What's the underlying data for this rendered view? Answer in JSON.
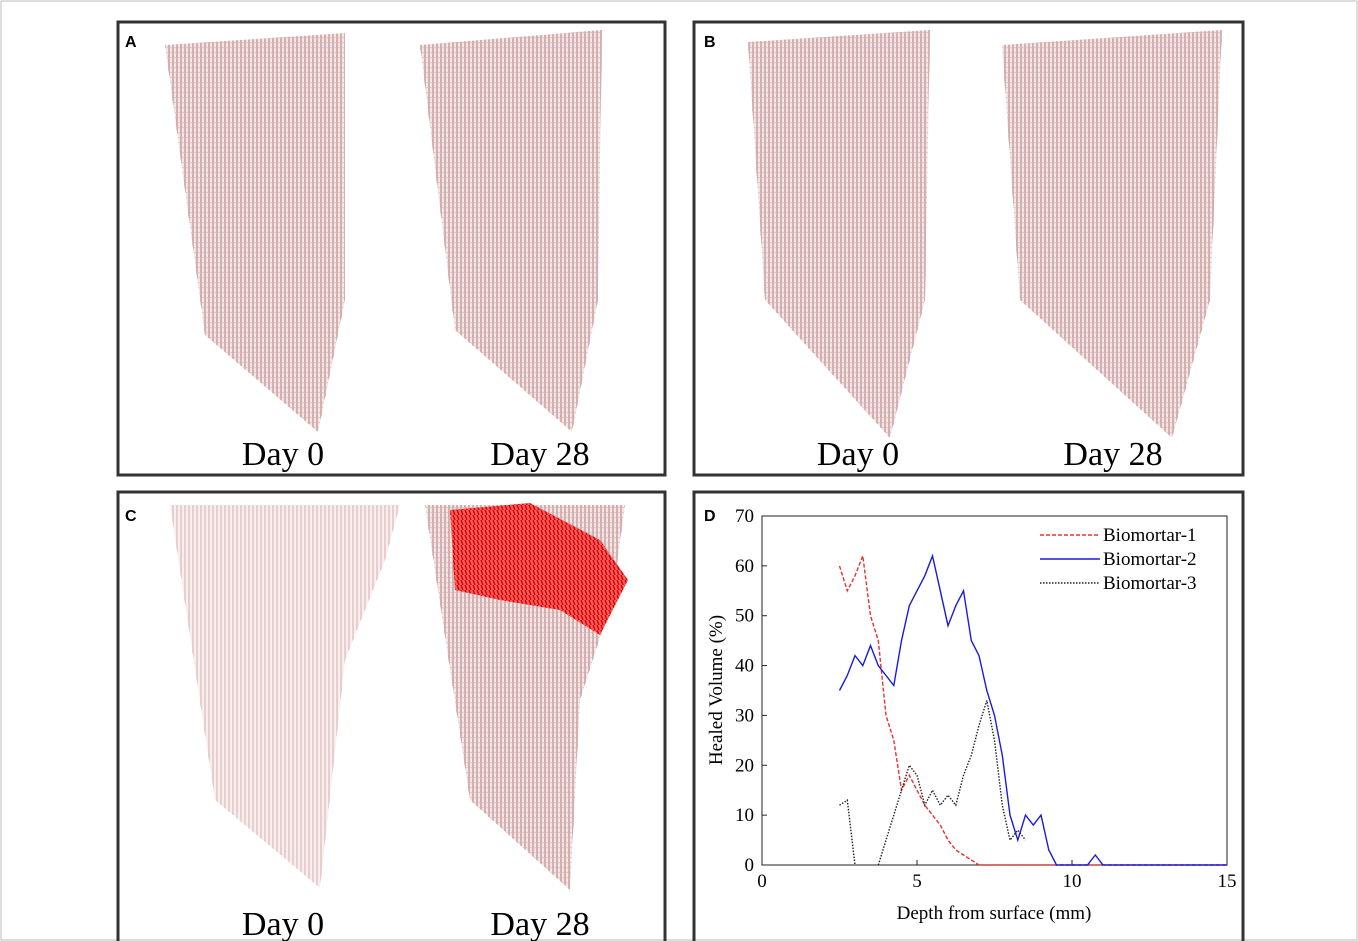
{
  "panels": [
    {
      "label": "A",
      "captions": [
        "Day 0",
        "Day 28"
      ]
    },
    {
      "label": "B",
      "captions": [
        "Day 0",
        "Day 28"
      ]
    },
    {
      "label": "C",
      "captions": [
        "Day 0",
        "Day 28"
      ]
    },
    {
      "label": "D"
    }
  ],
  "chart_data": {
    "type": "line",
    "x_label": "Depth from surface (mm)",
    "y_label": "Healed Volume (%)",
    "x": [
      2.5,
      2.75,
      3,
      3.25,
      3.5,
      3.75,
      4,
      4.25,
      4.5,
      4.75,
      5,
      5.25,
      5.5,
      5.75,
      6,
      6.25,
      6.5,
      6.75,
      7,
      7.25,
      7.5,
      7.75,
      8,
      8.25,
      8.5,
      8.75,
      9,
      9.25,
      9.5,
      9.75,
      10,
      10.25,
      10.5,
      10.75,
      11,
      11.25,
      11.5,
      11.75,
      12,
      12.25,
      12.5,
      12.75,
      13,
      13.25,
      13.5,
      13.75,
      14,
      14.25,
      14.5,
      14.75,
      15
    ],
    "series": [
      {
        "name": "Biomortar-1",
        "color": "#e8322e",
        "style": "dashed",
        "values": [
          60,
          55,
          58,
          62,
          50,
          45,
          30,
          25,
          15,
          18,
          15,
          12,
          10,
          8,
          5,
          3,
          2,
          1,
          0,
          0,
          0,
          0,
          0,
          0,
          0,
          0,
          0,
          0,
          0,
          0,
          0,
          0,
          0,
          0,
          0,
          0,
          0,
          0,
          0,
          0,
          0,
          0,
          0,
          0,
          0,
          0,
          0,
          0,
          0,
          0,
          0
        ]
      },
      {
        "name": "Biomortar-2",
        "color": "#1a1adf",
        "style": "solid",
        "values": [
          35,
          38,
          42,
          40,
          44,
          40,
          38,
          36,
          45,
          52,
          55,
          58,
          62,
          55,
          48,
          52,
          55,
          45,
          42,
          35,
          30,
          22,
          10,
          5,
          10,
          8,
          10,
          3,
          0,
          0,
          0,
          0,
          0,
          2,
          0,
          0,
          0,
          0,
          0,
          0,
          0,
          0,
          0,
          0,
          0,
          0,
          0,
          0,
          0,
          0,
          0
        ]
      },
      {
        "name": "Biomortar-3",
        "color": "#222222",
        "style": "dotted",
        "values": [
          12,
          13,
          0,
          null,
          null,
          0,
          5,
          10,
          15,
          20,
          18,
          12,
          15,
          12,
          14,
          12,
          18,
          22,
          28,
          33,
          25,
          12,
          5,
          7,
          5,
          null,
          null,
          null,
          null,
          null,
          null,
          null,
          null,
          null,
          null,
          null,
          null,
          null,
          null,
          null,
          null,
          null,
          null,
          null,
          null,
          null,
          null,
          null,
          null,
          null,
          null
        ]
      }
    ],
    "xlim": [
      0,
      15
    ],
    "xticks": [
      0,
      5,
      10,
      15
    ],
    "ylim": [
      0,
      70
    ],
    "yticks": [
      0,
      10,
      20,
      30,
      40,
      50,
      60,
      70
    ],
    "legend": "upper right"
  }
}
